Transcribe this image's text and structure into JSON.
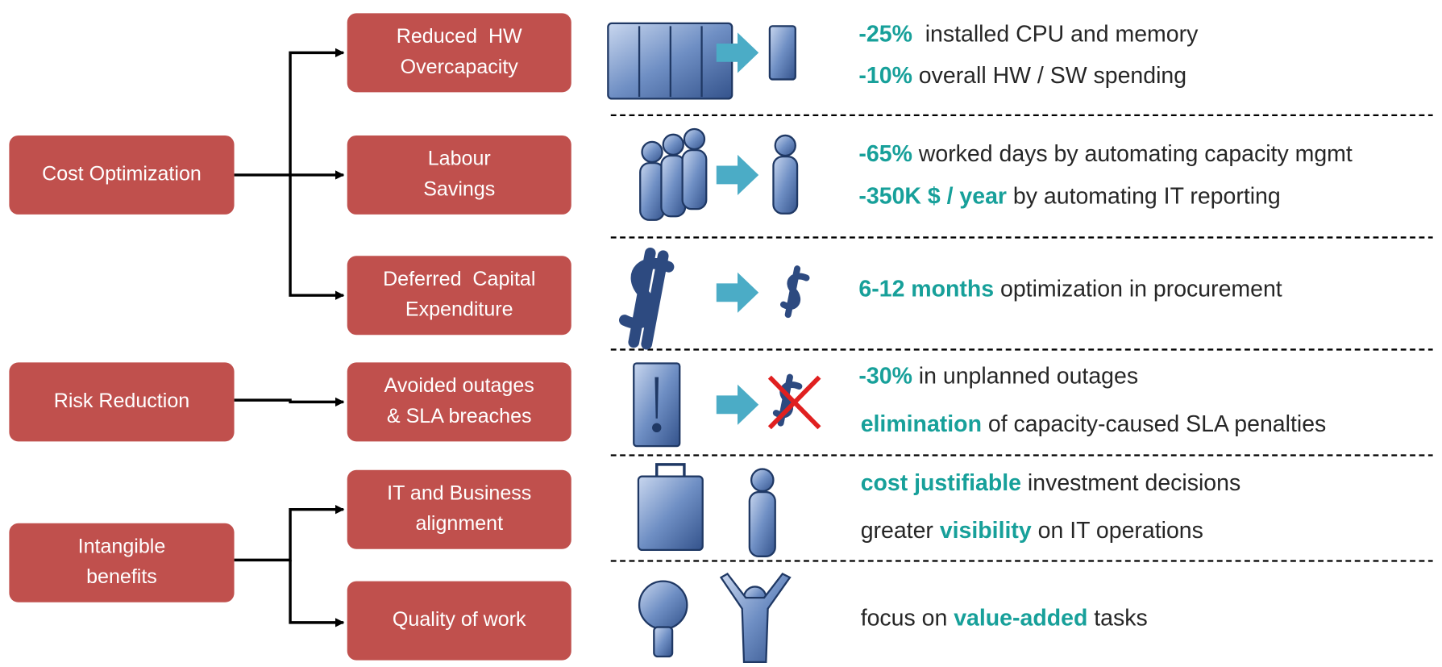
{
  "categories": [
    {
      "lines": [
        "Cost Optimization"
      ]
    },
    {
      "lines": [
        "Risk Reduction"
      ]
    },
    {
      "lines": [
        "Intangible",
        "benefits"
      ]
    }
  ],
  "benefits": [
    {
      "lines": [
        "Reduced  HW",
        "Overcapacity"
      ]
    },
    {
      "lines": [
        "Labour",
        "Savings"
      ]
    },
    {
      "lines": [
        "Deferred  Capital",
        "Expenditure"
      ]
    },
    {
      "lines": [
        "Avoided outages",
        "& SLA breaches"
      ]
    },
    {
      "lines": [
        "IT and Business",
        "alignment"
      ]
    },
    {
      "lines": [
        "Quality of work"
      ]
    }
  ],
  "results": [
    {
      "lines": [
        [
          {
            "text": "-25%",
            "accent": true
          },
          {
            "text": "  installed CPU and memory"
          }
        ],
        [
          {
            "text": "-10%",
            "accent": true
          },
          {
            "text": " overall HW / SW spending"
          }
        ]
      ]
    },
    {
      "lines": [
        [
          {
            "text": "-65%",
            "accent": true
          },
          {
            "text": " worked days by automating capacity mgmt"
          }
        ],
        [
          {
            "text": "-350K $ / year",
            "accent": true
          },
          {
            "text": " by automating IT reporting"
          }
        ]
      ]
    },
    {
      "lines": [
        [
          {
            "text": "6-12 months",
            "accent": true
          },
          {
            "text": " optimization in procurement"
          }
        ]
      ]
    },
    {
      "lines": [
        [
          {
            "text": "-30%",
            "accent": true
          },
          {
            "text": " in unplanned outages"
          }
        ],
        [
          {
            "text": "elimination",
            "accent": true
          },
          {
            "text": " of capacity-caused SLA penalties"
          }
        ]
      ]
    },
    {
      "lines": [
        [
          {
            "text": "cost justifiable",
            "accent": true
          },
          {
            "text": " investment decisions"
          }
        ],
        [
          {
            "text": "greater "
          },
          {
            "text": "visibility",
            "accent": true
          },
          {
            "text": " on IT operations"
          }
        ]
      ]
    },
    {
      "lines": [
        [
          {
            "text": "focus on "
          },
          {
            "text": "value-added",
            "accent": true
          },
          {
            "text": " tasks"
          }
        ]
      ]
    }
  ]
}
